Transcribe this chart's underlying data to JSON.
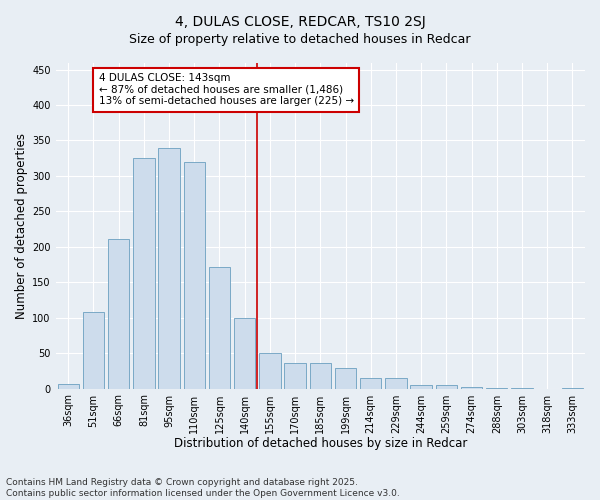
{
  "title": "4, DULAS CLOSE, REDCAR, TS10 2SJ",
  "subtitle": "Size of property relative to detached houses in Redcar",
  "xlabel": "Distribution of detached houses by size in Redcar",
  "ylabel": "Number of detached properties",
  "categories": [
    "36sqm",
    "51sqm",
    "66sqm",
    "81sqm",
    "95sqm",
    "110sqm",
    "125sqm",
    "140sqm",
    "155sqm",
    "170sqm",
    "185sqm",
    "199sqm",
    "214sqm",
    "229sqm",
    "244sqm",
    "259sqm",
    "274sqm",
    "288sqm",
    "303sqm",
    "318sqm",
    "333sqm"
  ],
  "values": [
    6,
    108,
    211,
    325,
    340,
    320,
    172,
    100,
    50,
    36,
    36,
    29,
    15,
    15,
    5,
    5,
    2,
    1,
    1,
    0,
    1
  ],
  "bar_color": "#cddcec",
  "bar_edge_color": "#6a9fc0",
  "vline_color": "#cc0000",
  "vline_pos": 7.5,
  "annotation_text": "4 DULAS CLOSE: 143sqm\n← 87% of detached houses are smaller (1,486)\n13% of semi-detached houses are larger (225) →",
  "annotation_box_color": "#cc0000",
  "annotation_text_color": "#000000",
  "annotation_bg_color": "#ffffff",
  "ylim": [
    0,
    460
  ],
  "yticks": [
    0,
    50,
    100,
    150,
    200,
    250,
    300,
    350,
    400,
    450
  ],
  "footer": "Contains HM Land Registry data © Crown copyright and database right 2025.\nContains public sector information licensed under the Open Government Licence v3.0.",
  "bg_color": "#e8eef4",
  "plot_bg_color": "#e8eef4",
  "grid_color": "#ffffff",
  "title_fontsize": 10,
  "subtitle_fontsize": 9,
  "axis_label_fontsize": 8.5,
  "tick_fontsize": 7,
  "annotation_fontsize": 7.5,
  "footer_fontsize": 6.5
}
